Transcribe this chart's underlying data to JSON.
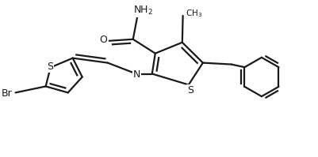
{
  "bg_color": "#ffffff",
  "line_color": "#1a1a1a",
  "line_width": 1.6,
  "figsize": [
    4.02,
    1.99
  ],
  "dpi": 100,
  "xlim": [
    0,
    10
  ],
  "ylim": [
    0,
    5
  ]
}
